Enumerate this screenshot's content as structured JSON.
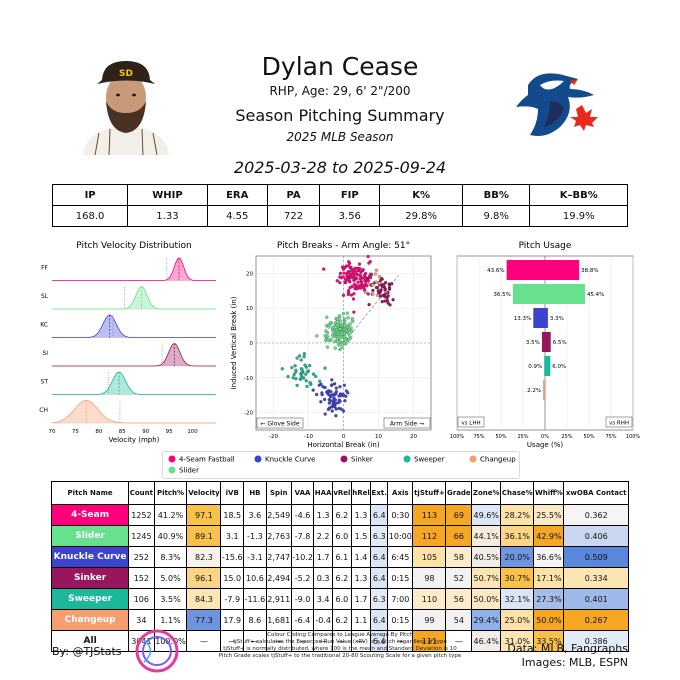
{
  "header": {
    "name": "Dylan Cease",
    "bio": "RHP, Age: 29, 6' 2\"/200",
    "summary_title": "Season Pitching Summary",
    "season": "2025 MLB Season",
    "date_range": "2025-03-28 to 2025-09-24"
  },
  "season_stats": {
    "headers": [
      "IP",
      "WHIP",
      "ERA",
      "PA",
      "FIP",
      "K%",
      "BB%",
      "K–BB%"
    ],
    "values": [
      "168.0",
      "1.33",
      "4.55",
      "722",
      "3.56",
      "29.8%",
      "9.8%",
      "19.9%"
    ]
  },
  "chart_data": [
    {
      "type": "density",
      "title": "Pitch Velocity Distribution",
      "xlabel": "Velocity (mph)",
      "xlim": [
        70,
        105
      ],
      "xticks": [
        "70",
        "75",
        "80",
        "85",
        "90",
        "95",
        "100"
      ],
      "rows": [
        {
          "label": "FF",
          "color": "#FF007D",
          "mean": 97.1,
          "sd": 1.0,
          "league_mean": 94.5
        },
        {
          "label": "SL",
          "color": "#67E18D",
          "mean": 89.1,
          "sd": 1.2,
          "league_mean": 85.5
        },
        {
          "label": "KC",
          "color": "#3C44CD",
          "mean": 82.3,
          "sd": 1.4,
          "league_mean": 83.0
        },
        {
          "label": "SI",
          "color": "#98165D",
          "mean": 96.1,
          "sd": 1.2,
          "league_mean": 93.5
        },
        {
          "label": "ST",
          "color": "#1BB999",
          "mean": 84.3,
          "sd": 1.4,
          "league_mean": 82.0
        },
        {
          "label": "CH",
          "color": "#F79E70",
          "mean": 77.3,
          "sd": 2.5,
          "league_mean": 84.5
        }
      ]
    },
    {
      "type": "scatter",
      "title": "Pitch Breaks - Arm Angle: 51°",
      "xlabel": "Horizontal Break (in)",
      "ylabel": "Induced Vertical Break (in)",
      "xlim": [
        -25,
        25
      ],
      "ylim": [
        -25,
        25
      ],
      "xticks": [
        "-20",
        "-10",
        "0",
        "10",
        "20"
      ],
      "yticks": [
        "-20",
        "-10",
        "0",
        "10",
        "20"
      ],
      "glove_label": "← Glove Side",
      "arm_label": "Arm Side →",
      "clusters": [
        {
          "name": "4-Seam",
          "color": "#FF007D",
          "hb": 3.6,
          "ivb": 18.5,
          "n": 120
        },
        {
          "name": "Sinker",
          "color": "#98165D",
          "hb": 10.6,
          "ivb": 15.0,
          "n": 45
        },
        {
          "name": "Slider",
          "color": "#67E18D",
          "hb": -1.3,
          "ivb": 3.1,
          "n": 120
        },
        {
          "name": "Sweeper",
          "color": "#1BB999",
          "hb": -11.6,
          "ivb": -7.9,
          "n": 40
        },
        {
          "name": "Knuckle Curve",
          "color": "#3C44CD",
          "hb": -3.1,
          "ivb": -15.6,
          "n": 70
        },
        {
          "name": "Changeup",
          "color": "#F79E70",
          "hb": 8.6,
          "ivb": 17.9,
          "n": 10
        }
      ]
    },
    {
      "type": "bar",
      "title": "Pitch Usage",
      "xlabel": "Usage (%)",
      "xticks": [
        "100%",
        "75%",
        "50%",
        "25%",
        "0%",
        "25%",
        "50%",
        "75%",
        "100%"
      ],
      "lhh_label": "vs LHH",
      "rhh_label": "vs RHH",
      "rows": [
        {
          "name": "4-Seam",
          "color": "#FF007D",
          "lhh": 43.6,
          "rhh": 38.8,
          "lhh_label": "43.6%",
          "rhh_label": "38.8%"
        },
        {
          "name": "Slider",
          "color": "#67E18D",
          "lhh": 36.5,
          "rhh": 45.4,
          "lhh_label": "36.5%",
          "rhh_label": "45.4%"
        },
        {
          "name": "Knuckle Curve",
          "color": "#3C44CD",
          "lhh": 13.3,
          "rhh": 3.3,
          "lhh_label": "13.3%",
          "rhh_label": "3.3%"
        },
        {
          "name": "Sinker",
          "color": "#98165D",
          "lhh": 3.5,
          "rhh": 6.5,
          "lhh_label": "3.5%",
          "rhh_label": "6.5%"
        },
        {
          "name": "Sweeper",
          "color": "#1BB999",
          "lhh": 0.9,
          "rhh": 6.0,
          "lhh_label": "0.9%",
          "rhh_label": "6.0%"
        },
        {
          "name": "Changeup",
          "color": "#F79E70",
          "lhh": 2.2,
          "rhh": 0,
          "lhh_label": "2.2%",
          "rhh_label": ""
        }
      ]
    }
  ],
  "legend": [
    {
      "label": "4-Seam Fastball",
      "color": "#FF007D"
    },
    {
      "label": "Knuckle Curve",
      "color": "#3C44CD"
    },
    {
      "label": "Sinker",
      "color": "#98165D"
    },
    {
      "label": "Sweeper",
      "color": "#1BB999"
    },
    {
      "label": "Changeup",
      "color": "#F79E70"
    },
    {
      "label": "Slider",
      "color": "#67E18D"
    }
  ],
  "pitch_table": {
    "headers": [
      "Pitch Name",
      "Count",
      "Pitch%",
      "Velocity",
      "iVB",
      "HB",
      "Spin",
      "VAA",
      "HAA",
      "vRel",
      "hRel",
      "Ext.",
      "Axis",
      "tjStuff+",
      "Grade",
      "Zone%",
      "Chase%",
      "Whiff%",
      "xwOBA Contact"
    ],
    "rows": [
      {
        "name": "4-Seam",
        "color": "#FF007D",
        "cells": [
          "1252",
          "41.2%",
          "97.1",
          "18.5",
          "3.6",
          "2,549",
          "-4.6",
          "1.3",
          "6.2",
          "1.3",
          "6.4",
          "0:30",
          "113",
          "69",
          "49.6%",
          "28.2%",
          "25.5%",
          "0.362"
        ],
        "shades": [
          "",
          "",
          "#f8c24a",
          "",
          "",
          "",
          "",
          "",
          "",
          "",
          "#dbe5f6",
          "",
          "#f5a623",
          "#f5a623",
          "#dce6f5",
          "#fde2a8",
          "#fbe9c6",
          "#f5f5f5"
        ]
      },
      {
        "name": "Slider",
        "color": "#67E18D",
        "cells": [
          "1245",
          "40.9%",
          "89.1",
          "3.1",
          "-1.3",
          "2,763",
          "-7.8",
          "2.2",
          "6.0",
          "1.5",
          "6.3",
          "10:00",
          "112",
          "66",
          "44.1%",
          "36.1%",
          "42.9%",
          "0.406"
        ],
        "shades": [
          "",
          "",
          "#f8c24a",
          "",
          "",
          "",
          "",
          "",
          "",
          "",
          "#e3ebf7",
          "",
          "#f5a623",
          "#f5a623",
          "#f6ecdc",
          "#fbd585",
          "#f5a623",
          "#c9d7f1"
        ]
      },
      {
        "name": "Knuckle Curve",
        "color": "#3C44CD",
        "cells": [
          "252",
          "8.3%",
          "82.3",
          "-15.6",
          "-3.1",
          "2,747",
          "-10.2",
          "1.7",
          "6.1",
          "1.4",
          "6.4",
          "6:45",
          "105",
          "58",
          "40.5%",
          "20.0%",
          "36.6%",
          "0.509"
        ],
        "shades": [
          "",
          "",
          "#f7f2ea",
          "",
          "",
          "",
          "",
          "",
          "",
          "",
          "#dbe5f6",
          "",
          "#fde2a8",
          "#fcecc9",
          "#f1eee9",
          "#6f95e0",
          "#f5f5f5",
          "#5a86db"
        ]
      },
      {
        "name": "Sinker",
        "color": "#98165D",
        "cells": [
          "152",
          "5.0%",
          "96.1",
          "15.0",
          "10.6",
          "2,494",
          "-5.2",
          "0.3",
          "6.2",
          "1.3",
          "6.4",
          "0:15",
          "98",
          "52",
          "50.7%",
          "30.7%",
          "17.1%",
          "0.334"
        ],
        "shades": [
          "",
          "",
          "#fbd585",
          "",
          "",
          "",
          "",
          "",
          "",
          "",
          "#dbe5f6",
          "",
          "#f2f2f2",
          "#f2f2f2",
          "#fbe6b3",
          "#f8c24a",
          "#fde2a8",
          "#fbe6b3"
        ]
      },
      {
        "name": "Sweeper",
        "color": "#1BB999",
        "cells": [
          "106",
          "3.5%",
          "84.3",
          "-7.9",
          "-11.6",
          "2,911",
          "-9.0",
          "3.4",
          "6.0",
          "1.7",
          "6.3",
          "7:00",
          "110",
          "56",
          "50.0%",
          "32.1%",
          "27.3%",
          "0.401"
        ],
        "shades": [
          "",
          "",
          "#fbe6b3",
          "",
          "",
          "",
          "",
          "",
          "",
          "",
          "#e3ebf7",
          "",
          "#fcecc9",
          "#fcecc9",
          "#fbe9c6",
          "#dbe5f6",
          "#a7bde9",
          "#9fb8ea"
        ]
      },
      {
        "name": "Changeup",
        "color": "#F79E70",
        "cells": [
          "34",
          "1.1%",
          "77.3",
          "17.9",
          "8.6",
          "1,681",
          "-6.4",
          "-0.4",
          "6.2",
          "1.1",
          "6.4",
          "0:15",
          "99",
          "54",
          "29.4%",
          "25.0%",
          "50.0%",
          "0.267"
        ],
        "shades": [
          "",
          "",
          "#6f95e0",
          "",
          "",
          "",
          "",
          "",
          "",
          "",
          "#dbe5f6",
          "",
          "#f2f2f2",
          "#f2f2f2",
          "#8fb0ea",
          "#fde2a8",
          "#f5a623",
          "#f5a623"
        ]
      },
      {
        "name": "All",
        "color": "#ffffff",
        "cells": [
          "3041",
          "100.0%",
          "—",
          "—",
          "—",
          "—",
          "—",
          "—",
          "—",
          "—",
          "6.4",
          "—",
          "111",
          "—",
          "46.4%",
          "31.0%",
          "33.5%",
          "0.386"
        ],
        "shades": [
          "",
          "",
          "",
          "",
          "",
          "",
          "",
          "",
          "",
          "",
          "#dbe5f6",
          "",
          "#f5a623",
          "",
          "#f1eee9",
          "#fbe6b3",
          "#f8c24a",
          "#e3ebf7"
        ]
      }
    ]
  },
  "footer": {
    "byline": "By: @TJStats",
    "note_lines": [
      "Colour Coding Compares to League Average By Pitch",
      "tjStuff+ calculates the Expected Run Value (xRV) of a pitch regardless of type",
      "tjStuff+ is normally distributed, where 100 is the mean and Standard Deviation is 10",
      "Pitch Grade scales tjStuff+ to the traditional 20-80 Scouting Scale for a given pitch type"
    ],
    "data_source": "Data: MLB, Fangraphs",
    "image_source": "Images: MLB, ESPN"
  }
}
